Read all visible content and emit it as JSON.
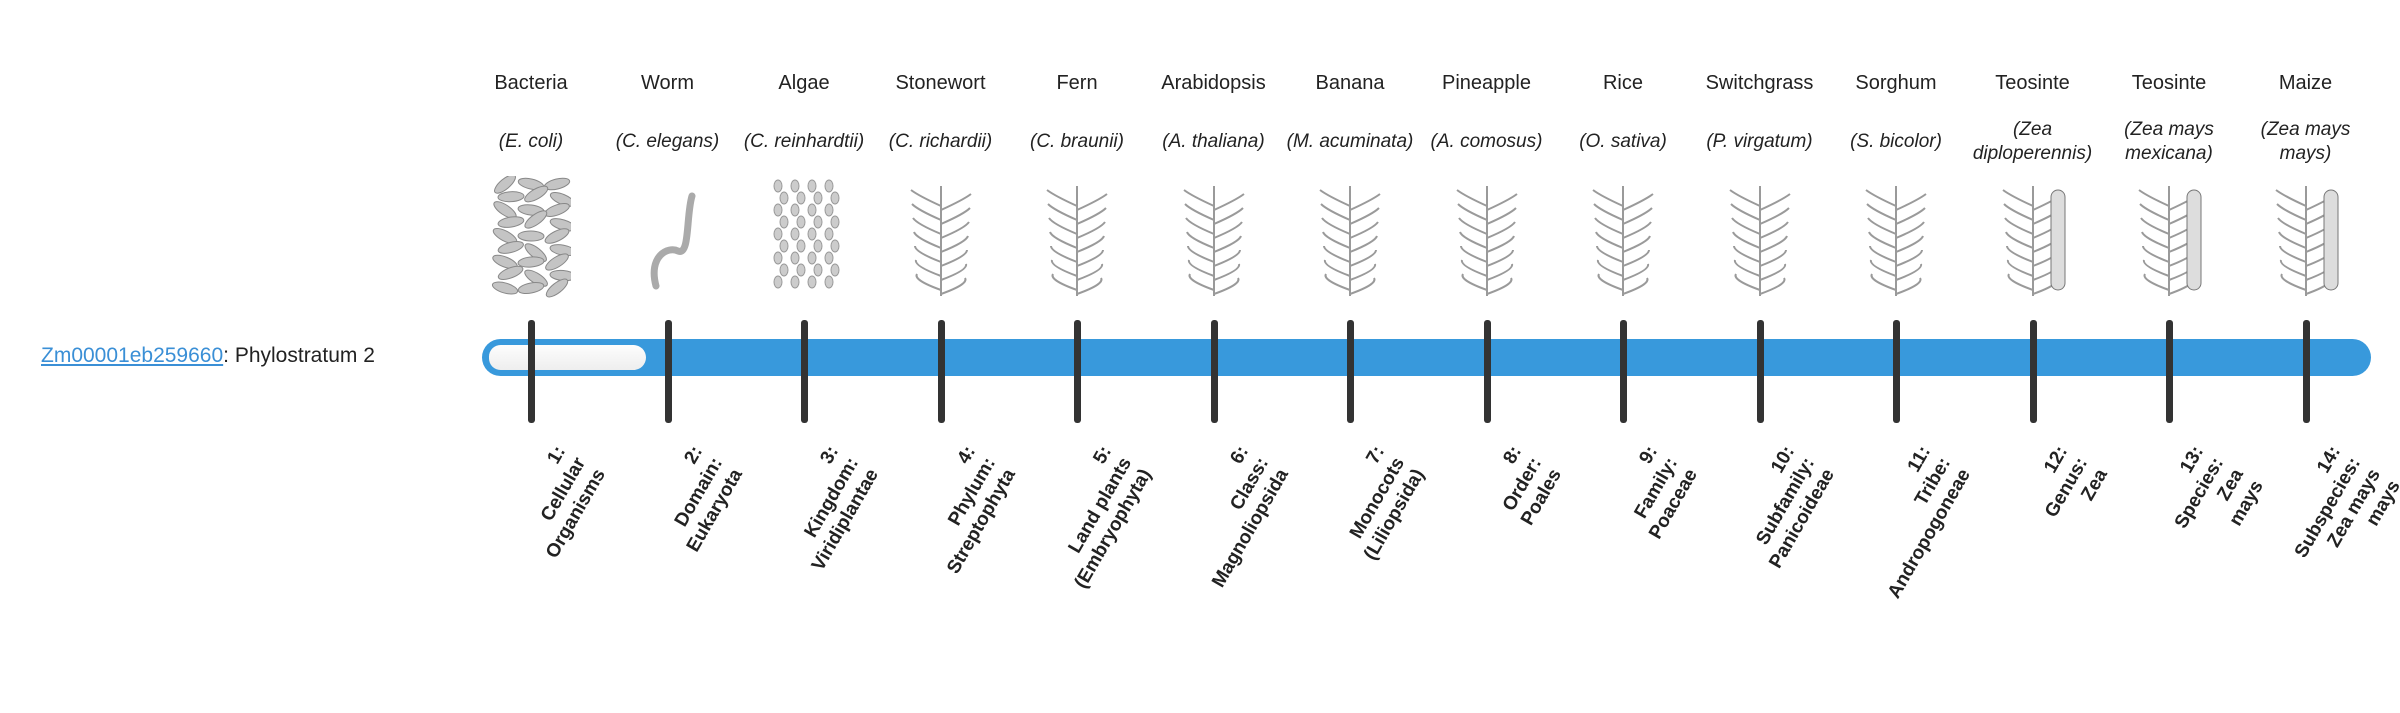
{
  "gene": {
    "id": "Zm00001eb259660",
    "suffix": ": Phylostratum 2"
  },
  "phylostratum": {
    "current": 2,
    "total": 14
  },
  "colors": {
    "bar": "#3899dc",
    "link": "#3a8fd6",
    "tick": "#333333"
  },
  "organisms": [
    {
      "common": "Bacteria",
      "species": "(E. coli)",
      "icon": "bacteria-image"
    },
    {
      "common": "Worm",
      "species": "(C. elegans)",
      "icon": "worm-image"
    },
    {
      "common": "Algae",
      "species": "(C. reinhardtii)",
      "icon": "algae-image"
    },
    {
      "common": "Stonewort",
      "species": "(C. richardii)",
      "icon": "stonewort-image"
    },
    {
      "common": "Fern",
      "species": "(C. braunii)",
      "icon": "fern-image"
    },
    {
      "common": "Arabidopsis",
      "species": "(A. thaliana)",
      "icon": "arabidopsis-image"
    },
    {
      "common": "Banana",
      "species": "(M. acuminata)",
      "icon": "banana-image"
    },
    {
      "common": "Pineapple",
      "species": "(A. comosus)",
      "icon": "pineapple-image"
    },
    {
      "common": "Rice",
      "species": "(O. sativa)",
      "icon": "rice-image"
    },
    {
      "common": "Switchgrass",
      "species": "(P. virgatum)",
      "icon": "switchgrass-image"
    },
    {
      "common": "Sorghum",
      "species": "(S. bicolor)",
      "icon": "sorghum-image"
    },
    {
      "common": "Teosinte",
      "species": "(Zea diploperennis)",
      "icon": "teosinte-image"
    },
    {
      "common": "Teosinte",
      "species": "(Zea mays mexicana)",
      "icon": "teosinte-mexicana-image"
    },
    {
      "common": "Maize",
      "species": "(Zea mays mays)",
      "icon": "maize-image"
    }
  ],
  "strata": [
    {
      "lines": [
        "1:",
        "Cellular",
        "Organisms"
      ]
    },
    {
      "lines": [
        "2:",
        "Domain:",
        "Eukaryota"
      ]
    },
    {
      "lines": [
        "3:",
        "Kingdom:",
        "Viridiplantae"
      ]
    },
    {
      "lines": [
        "4:",
        "Phylum:",
        "Streptophyta"
      ]
    },
    {
      "lines": [
        "5:",
        "Land plants",
        "(Embryophyta)"
      ]
    },
    {
      "lines": [
        "6:",
        "Class:",
        "Magnoliopsida"
      ]
    },
    {
      "lines": [
        "7:",
        "Monocots",
        "(Liliopsida)"
      ]
    },
    {
      "lines": [
        "8:",
        "Order:",
        "Poales"
      ]
    },
    {
      "lines": [
        "9:",
        "Family:",
        "Poaceae"
      ]
    },
    {
      "lines": [
        "10:",
        "Subfamily:",
        "Panicoideae"
      ]
    },
    {
      "lines": [
        "11:",
        "Tribe:",
        "Andropogoneae"
      ]
    },
    {
      "lines": [
        "12:",
        "Genus:",
        "Zea"
      ]
    },
    {
      "lines": [
        "13:",
        "Species:",
        "Zea",
        "mays"
      ]
    },
    {
      "lines": [
        "14:",
        "Subspecies:",
        "Zea mays",
        "mays"
      ]
    }
  ]
}
